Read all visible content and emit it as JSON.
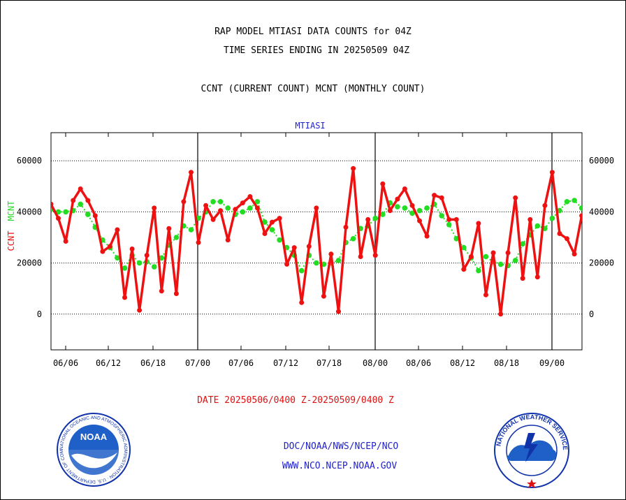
{
  "titles": {
    "line1": "RAP MODEL MTIASI DATA COUNTS for 04Z",
    "line2": "TIME SERIES ENDING IN 20250509 04Z",
    "line3": "CCNT (CURRENT COUNT) MCNT (MONTHLY COUNT)"
  },
  "footer": {
    "date_range": "DATE 20250506/0400 Z-20250509/0400 Z",
    "org": "DOC/NOAA/NWS/NCEP/NCO",
    "url": "WWW.NCO.NCEP.NOAA.GOV"
  },
  "logos": {
    "noaa_text": "NOAA",
    "noaa_ring": "NATIONAL OCEANIC AND ATMOSPHERIC ADMINISTRATION · U.S. DEPARTMENT OF COMMERCE",
    "nws_ring": "NATIONAL WEATHER SERVICE"
  },
  "colors": {
    "ccnt": "#ee1111",
    "mcnt": "#22dd22",
    "dataset_label": "#2222cc",
    "footer_link": "#2222cc",
    "date_text": "#dd1111"
  },
  "chart_data": {
    "type": "line",
    "dataset_label": "MTIASI",
    "ylabel_left": [
      "CCNT",
      "MCNT"
    ],
    "y_ticks": [
      0,
      20000,
      40000,
      60000
    ],
    "ylim": [
      -14000,
      71000
    ],
    "x_tick_labels": [
      "06/06",
      "06/12",
      "06/18",
      "07/00",
      "07/06",
      "07/12",
      "07/18",
      "08/00",
      "08/06",
      "08/12",
      "08/18",
      "09/00"
    ],
    "x_day_boundaries": [
      "07/00",
      "08/00",
      "09/00"
    ],
    "grid": true,
    "series": [
      {
        "name": "CCNT",
        "values": [
          43000,
          37500,
          28500,
          44500,
          49000,
          44500,
          38500,
          24500,
          26500,
          33000,
          6500,
          25500,
          1500,
          23000,
          41500,
          9000,
          33500,
          8000,
          44000,
          55500,
          28000,
          42500,
          37000,
          40500,
          29000,
          41000,
          43500,
          46000,
          41500,
          31500,
          36000,
          37500,
          19500,
          26000,
          4500,
          26500,
          41500,
          7000,
          23500,
          1000,
          34000,
          57000,
          22500,
          37000,
          23000,
          51000,
          40500,
          45000,
          49000,
          42500,
          36500,
          30500,
          46500,
          45500,
          37000,
          37000,
          17500,
          22500,
          35500,
          7500,
          24000,
          0,
          24000,
          45500,
          14000,
          37000,
          14500,
          42500,
          55500,
          31500,
          29500,
          23500,
          38500
        ]
      },
      {
        "name": "MCNT",
        "values": [
          41000,
          40000,
          40000,
          40500,
          43000,
          39000,
          34000,
          29000,
          26000,
          22000,
          18000,
          23000,
          20000,
          20500,
          18500,
          22000,
          27000,
          30000,
          34500,
          33000,
          37500,
          40000,
          44000,
          44000,
          41500,
          39000,
          40000,
          41500,
          44000,
          36000,
          33000,
          29000,
          26000,
          23000,
          17000,
          23000,
          20000,
          19500,
          20000,
          21000,
          28000,
          29500,
          33500,
          34500,
          37500,
          39000,
          43500,
          42000,
          41500,
          39500,
          40500,
          41500,
          43000,
          38500,
          35000,
          29500,
          26000,
          22000,
          17000,
          22500,
          20500,
          19500,
          19000,
          21000,
          27500,
          31000,
          34500,
          33500,
          37500,
          40500,
          44000,
          44500,
          41500
        ]
      }
    ]
  }
}
